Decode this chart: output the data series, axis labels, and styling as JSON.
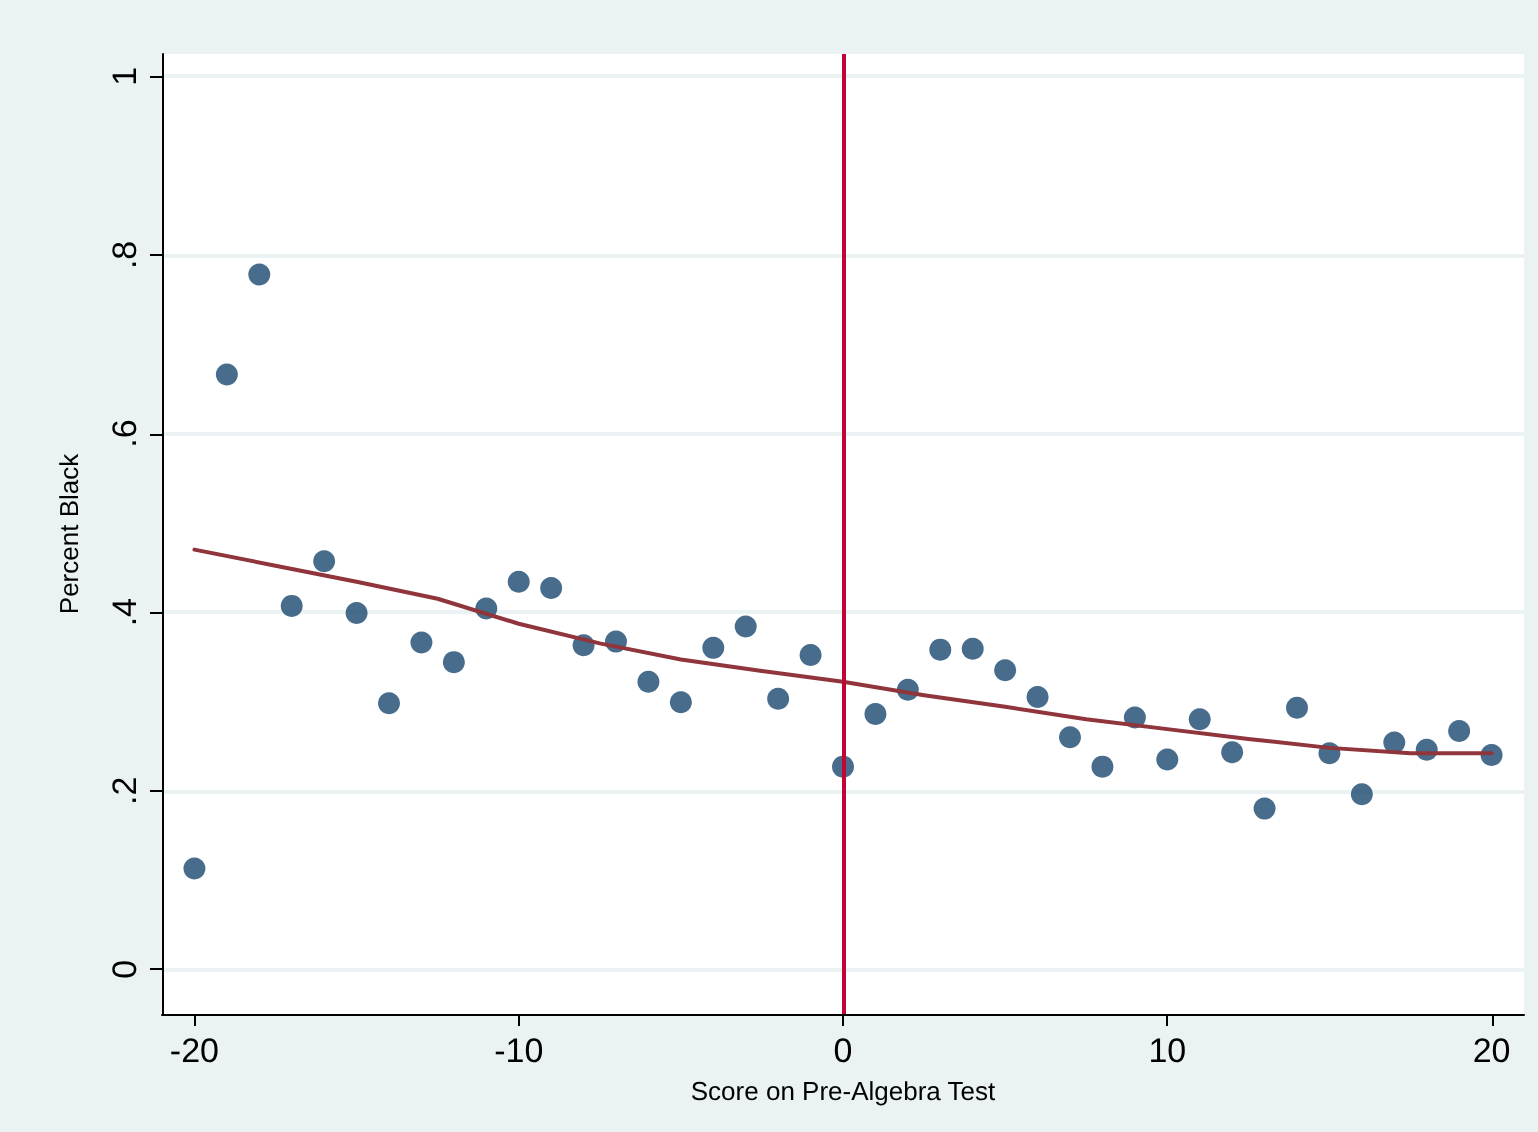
{
  "chart_data": {
    "type": "scatter",
    "xlabel": "Score on Pre-Algebra Test",
    "ylabel": "Percent Black",
    "xlim": [
      -21,
      21
    ],
    "xticks": [
      -20,
      -10,
      0,
      10,
      20
    ],
    "ylim": [
      -0.05,
      1.025
    ],
    "yticks": [
      {
        "value": 0,
        "label": "0"
      },
      {
        "value": 0.2,
        "label": ".2"
      },
      {
        "value": 0.4,
        "label": ".4"
      },
      {
        "value": 0.6,
        "label": ".6"
      },
      {
        "value": 0.8,
        "label": ".8"
      },
      {
        "value": 1,
        "label": "1"
      }
    ],
    "grid": "y",
    "ref_lines": [
      {
        "axis": "x",
        "value": 0,
        "color": "#c10534"
      }
    ],
    "series": [
      {
        "marker": "circle",
        "color": "#1a476f",
        "x": [
          -20,
          -19,
          -18,
          -17,
          -16,
          -15,
          -14,
          -13,
          -12,
          -11,
          -10,
          -9,
          -8,
          -7,
          -6,
          -5,
          -4,
          -3,
          -2,
          -1,
          0,
          1,
          2,
          3,
          4,
          5,
          6,
          7,
          8,
          9,
          10,
          11,
          12,
          13,
          14,
          15,
          16,
          17,
          18,
          19,
          20
        ],
        "values": [
          0.113,
          0.666,
          0.778,
          0.407,
          0.457,
          0.399,
          0.298,
          0.366,
          0.344,
          0.404,
          0.434,
          0.427,
          0.363,
          0.367,
          0.322,
          0.299,
          0.36,
          0.384,
          0.303,
          0.352,
          0.227,
          0.286,
          0.313,
          0.358,
          0.359,
          0.335,
          0.305,
          0.26,
          0.227,
          0.282,
          0.235,
          0.28,
          0.243,
          0.18,
          0.293,
          0.242,
          0.196,
          0.254,
          0.246,
          0.267,
          0.24
        ]
      },
      {
        "type": "line",
        "color": "#90353b",
        "x": [
          -20,
          -17.5,
          -15,
          -12.5,
          -10,
          -7.5,
          -5,
          -2.5,
          0,
          2.5,
          5,
          7.5,
          10,
          12.5,
          15,
          17.5,
          20
        ],
        "values": [
          0.47,
          0.452,
          0.434,
          0.415,
          0.387,
          0.365,
          0.347,
          0.334,
          0.322,
          0.307,
          0.294,
          0.28,
          0.269,
          0.258,
          0.248,
          0.242,
          0.242
        ]
      }
    ]
  }
}
